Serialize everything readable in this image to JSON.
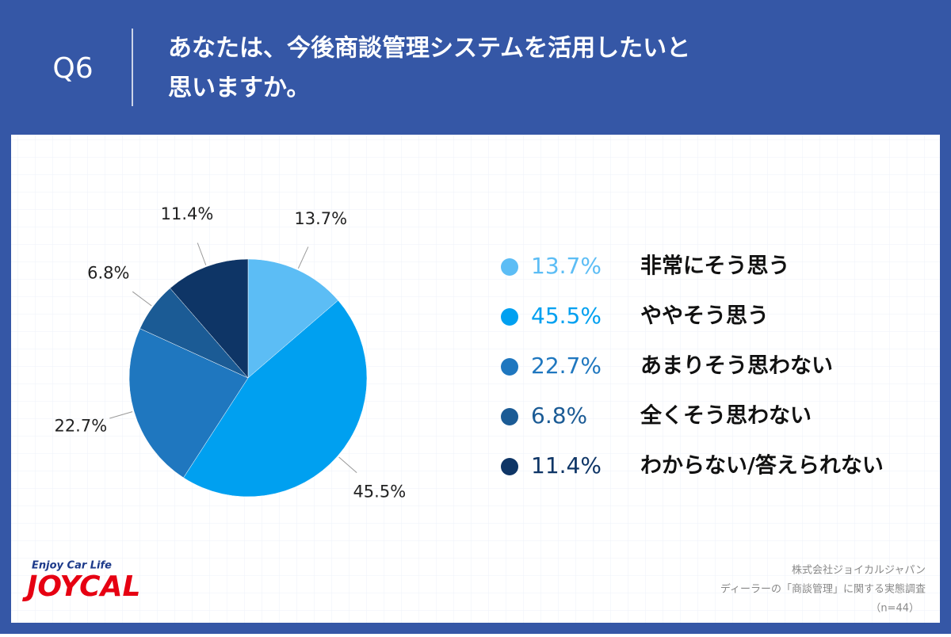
{
  "header": {
    "question_no": "Q6"
  },
  "chart_data": {
    "type": "pie",
    "title": [
      "あなたは、今後商談管理システムを活用したいと",
      "思いますか。"
    ],
    "categories": [
      "非常にそう思う",
      "ややそう思う",
      "あまりそう思わない",
      "全くそう思わない",
      "わからない/答えられない"
    ],
    "values": [
      13.7,
      45.5,
      22.7,
      6.8,
      11.4
    ],
    "value_labels": [
      "13.7%",
      "45.5%",
      "22.7%",
      "6.8%",
      "11.4%"
    ],
    "colors": [
      "#5cbdf5",
      "#00a0f0",
      "#1f77bf",
      "#1b5b95",
      "#0e3566"
    ]
  },
  "footer": {
    "source": [
      "株式会社ジョイカルジャパン",
      "ディーラーの「商談管理」に関する実態調査",
      "（n=44）"
    ]
  },
  "logo": {
    "tagline": "Enjoy Car Life",
    "brand": "JOYCAL"
  }
}
